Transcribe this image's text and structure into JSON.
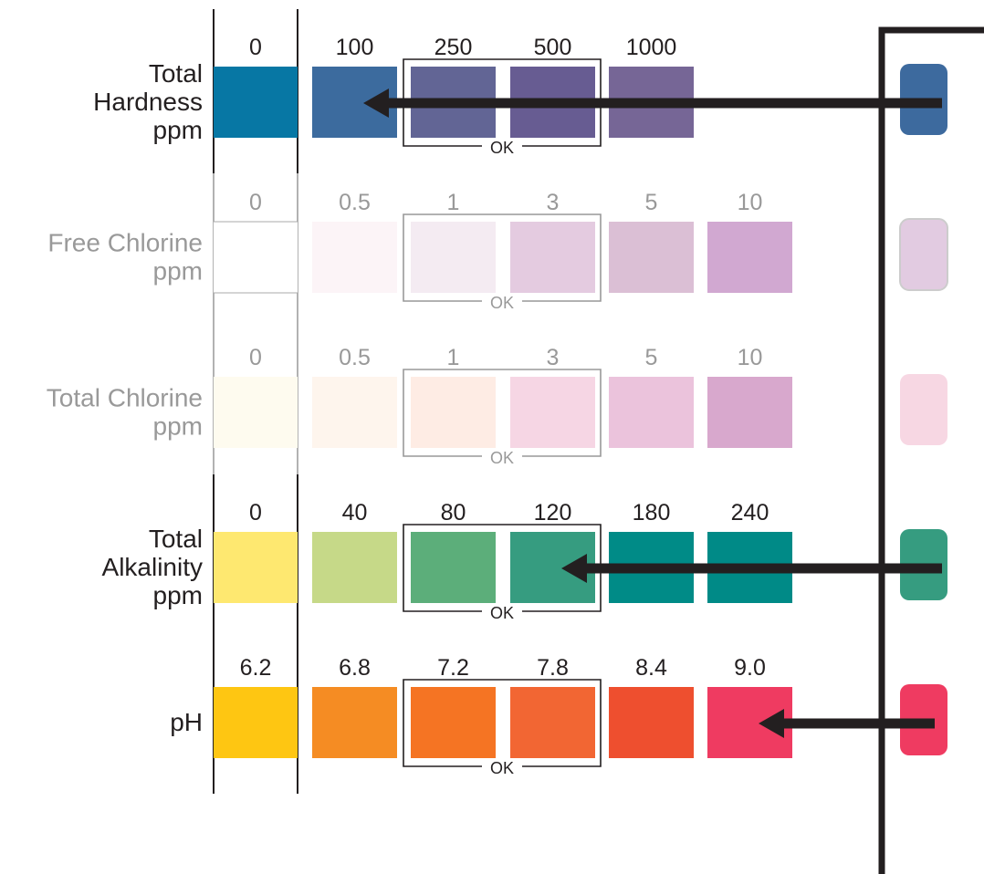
{
  "ok_label": "OK",
  "rows": [
    {
      "name_lines": [
        "Total",
        "Hardness",
        "ppm"
      ],
      "active": true,
      "values": [
        "0",
        "100",
        "250",
        "500",
        "1000"
      ],
      "colors": [
        "#0777a4",
        "#3c6b9e",
        "#626595",
        "#675c92",
        "#766696"
      ],
      "ok_range": [
        2,
        3
      ],
      "strip_color": "#3d6a9e",
      "arrow_to_index": 1
    },
    {
      "name_lines": [
        "Free Chlorine",
        "ppm"
      ],
      "active": false,
      "values": [
        "0",
        "0.5",
        "1",
        "3",
        "5",
        "10"
      ],
      "colors": [
        "#ffffff",
        "#fcf4f7",
        "#f4ebf2",
        "#e4cbe0",
        "#dbbfd5",
        "#d1a8d1"
      ],
      "ok_range": [
        2,
        3
      ],
      "strip_color": "#e2cbe1",
      "arrow_to_index": null
    },
    {
      "name_lines": [
        "Total Chlorine",
        "ppm"
      ],
      "active": false,
      "values": [
        "0",
        "0.5",
        "1",
        "3",
        "5",
        "10"
      ],
      "colors": [
        "#fefbef",
        "#fef5ed",
        "#feece4",
        "#f6d6e4",
        "#ebc3dc",
        "#d8a8cd"
      ],
      "ok_range": [
        2,
        3
      ],
      "strip_color": "#f7d7e3",
      "arrow_to_index": null
    },
    {
      "name_lines": [
        "Total",
        "Alkalinity",
        "ppm"
      ],
      "active": true,
      "values": [
        "0",
        "40",
        "80",
        "120",
        "180",
        "240"
      ],
      "colors": [
        "#fee870",
        "#c6d988",
        "#5cae7a",
        "#369c80",
        "#008b87",
        "#008a87"
      ],
      "ok_range": [
        2,
        3
      ],
      "strip_color": "#369c80",
      "arrow_to_index": 3
    },
    {
      "name_lines": [
        "pH"
      ],
      "active": true,
      "values": [
        "6.2",
        "6.8",
        "7.2",
        "7.8",
        "8.4",
        "9.0"
      ],
      "colors": [
        "#fec612",
        "#f58c23",
        "#f57423",
        "#f26633",
        "#ee4f2f",
        "#ef3b61"
      ],
      "ok_range": [
        2,
        3
      ],
      "strip_color": "#ef3b61",
      "arrow_to_index": 5
    }
  ]
}
